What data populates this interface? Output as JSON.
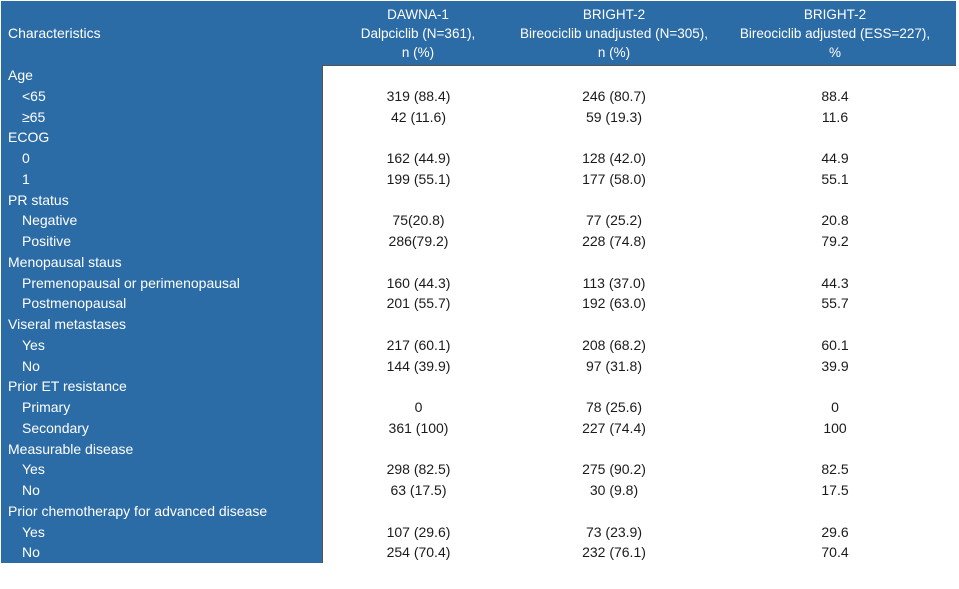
{
  "colors": {
    "header_blue": "#2C6CA6",
    "body_text": "#1a1a1a",
    "header_text": "#ffffff",
    "divider": "#545454"
  },
  "table": {
    "columns": [
      {
        "id": "characteristics",
        "lines": [
          "Characteristics"
        ]
      },
      {
        "id": "dawna1",
        "lines": [
          "DAWNA-1",
          "Dalpciclib (N=361),",
          "n (%)"
        ]
      },
      {
        "id": "bright2-unadjusted",
        "lines": [
          "BRIGHT-2",
          "Bireociclib unadjusted (N=305),",
          "n (%)"
        ]
      },
      {
        "id": "bright2-adjusted",
        "lines": [
          "BRIGHT-2",
          "Bireociclib adjusted (ESS=227),",
          "%"
        ]
      }
    ],
    "sections": [
      {
        "header": "Age",
        "rows": [
          {
            "label": "<65",
            "values": [
              "319 (88.4)",
              "246 (80.7)",
              "88.4"
            ]
          },
          {
            "label": "≥65",
            "values": [
              "42 (11.6)",
              "59 (19.3)",
              "11.6"
            ]
          }
        ]
      },
      {
        "header": "ECOG",
        "rows": [
          {
            "label": "0",
            "values": [
              "162 (44.9)",
              "128 (42.0)",
              "44.9"
            ]
          },
          {
            "label": "1",
            "values": [
              "199 (55.1)",
              "177 (58.0)",
              "55.1"
            ]
          }
        ]
      },
      {
        "header": "PR status",
        "rows": [
          {
            "label": "Negative",
            "values": [
              "75(20.8)",
              "77 (25.2)",
              "20.8"
            ]
          },
          {
            "label": "Positive",
            "values": [
              "286(79.2)",
              "228 (74.8)",
              "79.2"
            ]
          }
        ]
      },
      {
        "header": "Menopausal staus",
        "rows": [
          {
            "label": "Premenopausal or perimenopausal",
            "values": [
              "160 (44.3)",
              "113 (37.0)",
              "44.3"
            ]
          },
          {
            "label": "Postmenopausal",
            "values": [
              "201 (55.7)",
              "192 (63.0)",
              "55.7"
            ]
          }
        ]
      },
      {
        "header": "Viseral metastases",
        "rows": [
          {
            "label": "Yes",
            "values": [
              "217 (60.1)",
              "208 (68.2)",
              "60.1"
            ]
          },
          {
            "label": "No",
            "values": [
              "144 (39.9)",
              "97 (31.8)",
              "39.9"
            ]
          }
        ]
      },
      {
        "header": "Prior ET resistance",
        "rows": [
          {
            "label": "Primary",
            "values": [
              "0",
              "78 (25.6)",
              "0"
            ]
          },
          {
            "label": "Secondary",
            "values": [
              "361 (100)",
              "227 (74.4)",
              "100"
            ]
          }
        ]
      },
      {
        "header": "Measurable disease",
        "rows": [
          {
            "label": "Yes",
            "values": [
              "298 (82.5)",
              "275 (90.2)",
              "82.5"
            ]
          },
          {
            "label": "No",
            "values": [
              "63 (17.5)",
              "30 (9.8)",
              "17.5"
            ]
          }
        ]
      },
      {
        "header": "Prior chemotherapy for advanced disease",
        "rows": [
          {
            "label": "Yes",
            "values": [
              "107 (29.6)",
              "73 (23.9)",
              "29.6"
            ]
          },
          {
            "label": "No",
            "values": [
              "254 (70.4)",
              "232 (76.1)",
              "70.4"
            ]
          }
        ]
      }
    ]
  }
}
